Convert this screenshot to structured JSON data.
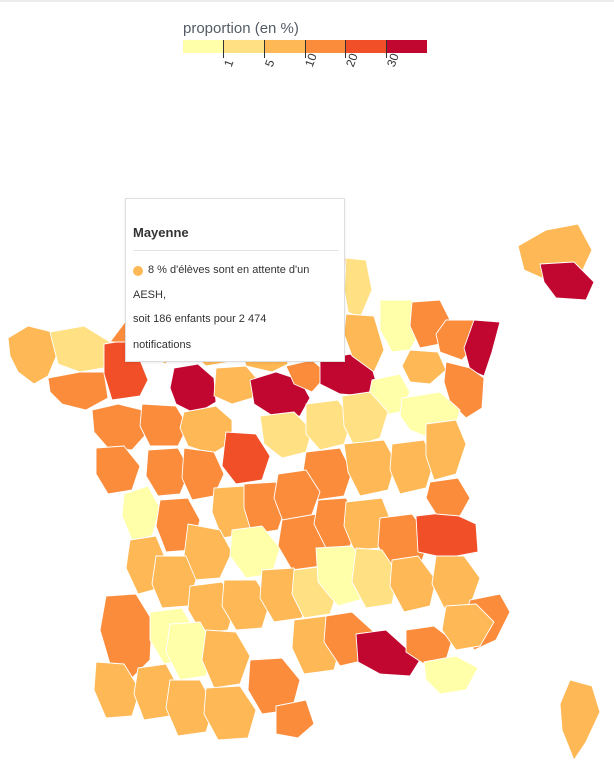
{
  "legend": {
    "title": "proportion (en %)",
    "colors": [
      "#ffffaa",
      "#ffe083",
      "#feb855",
      "#fb8c3c",
      "#f04f27",
      "#c10730"
    ],
    "ticks": [
      "1",
      "5",
      "10",
      "20",
      "30"
    ]
  },
  "tooltip": {
    "department": "Mayenne",
    "dot_color": "#feb855",
    "line1": "8 % d'élèves sont en attente d'un",
    "line2": "AESH,",
    "line3": "soit 186 enfants pour 2 474",
    "line4": "notifications"
  }
}
